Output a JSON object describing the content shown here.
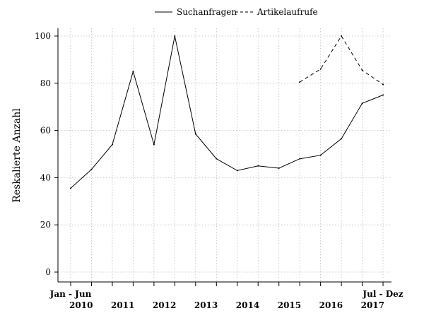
{
  "chart_data": {
    "type": "line",
    "ylabel": "Reskalierte Anzahl",
    "ylim": [
      0,
      100
    ],
    "yticks": [
      0,
      20,
      40,
      60,
      80,
      100
    ],
    "grid": true,
    "legend_position": "top",
    "x_periods": [
      "2010 H1",
      "2010 H2",
      "2011 H1",
      "2011 H2",
      "2012 H1",
      "2012 H2",
      "2013 H1",
      "2013 H2",
      "2014 H1",
      "2014 H2",
      "2015 H1",
      "2015 H2",
      "2016 H1",
      "2016 H2",
      "2017 H1",
      "2017 H2"
    ],
    "x_edge_labels": {
      "start": "Jan - Jun",
      "end": "Jul - Dez"
    },
    "year_labels": [
      "2010",
      "2011",
      "2012",
      "2013",
      "2014",
      "2015",
      "2016",
      "2017"
    ],
    "series": [
      {
        "name": "Suchanfragen",
        "style": "solid",
        "values": [
          35.5,
          43.5,
          54,
          85,
          54,
          100,
          58.5,
          48,
          43,
          45,
          44,
          48,
          49.5,
          56.5,
          71.5,
          75
        ]
      },
      {
        "name": "Artikelaufrufe",
        "style": "dashed",
        "values": [
          null,
          null,
          null,
          null,
          null,
          null,
          null,
          null,
          null,
          null,
          null,
          80.5,
          86,
          100,
          85.5,
          79.5
        ]
      }
    ]
  }
}
